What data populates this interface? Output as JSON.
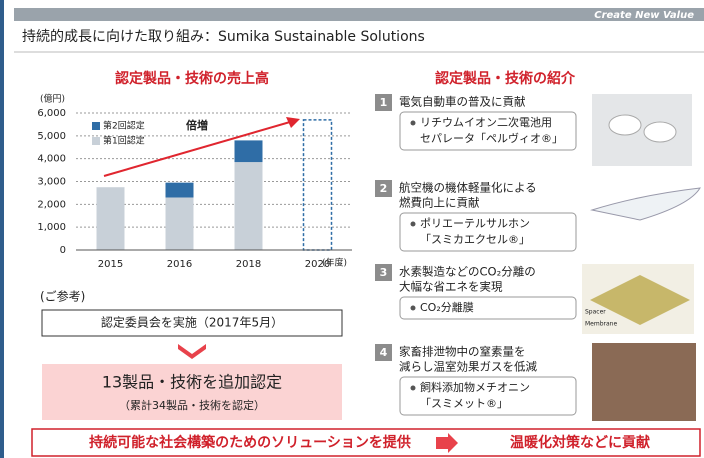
{
  "header": {
    "tag": "Create New Value",
    "title": "持続的成長に向けた取り組み：Sumika Sustainable Solutions"
  },
  "left_heading": "認定製品・技術の売上高",
  "chart_data": {
    "type": "stacked-bar",
    "y_unit": "(億円)",
    "x_unit": "(年度)",
    "annotation": "倍増",
    "categories": [
      "2015",
      "2016",
      "2018",
      "2020"
    ],
    "series": [
      {
        "name": "第1回認定",
        "color": "#c8d0d8",
        "values": [
          2750,
          2300,
          3850,
          null
        ]
      },
      {
        "name": "第2回認定",
        "color": "#2f6da6",
        "values": [
          null,
          650,
          950,
          null
        ]
      }
    ],
    "target_values": [
      null,
      null,
      null,
      5700
    ],
    "target_color": "#2f6da6",
    "ylim": [
      0,
      6000
    ],
    "yticks": [
      0,
      {
        "value": 1000,
        "label": "1,000"
      },
      {
        "value": 2000,
        "label": "2,000"
      },
      {
        "value": 3000,
        "label": "3,000"
      },
      {
        "value": 4000,
        "label": "4,000"
      },
      {
        "value": 5000,
        "label": "5,000"
      },
      {
        "value": 6000,
        "label": "6,000"
      }
    ],
    "grid": true
  },
  "reference": {
    "label": "(ご参考)",
    "event": "認定委員会を実施（2017年5月）",
    "result": "13製品・技術を追加認定",
    "result_note": "（累計34製品・技術を認定）"
  },
  "right_heading": "認定製品・技術の紹介",
  "items": [
    {
      "number": 1,
      "title": [
        "電気自動車の普及に貢献"
      ],
      "product": [
        "リチウムイオン二次電池用",
        "セパレータ「ペルヴィオ®」"
      ]
    },
    {
      "number": 2,
      "title": [
        "航空機の機体軽量化による",
        "燃費向上に貢献"
      ],
      "product": [
        "ポリエーテルサルホン",
        "「スミカエクセル®」"
      ]
    },
    {
      "number": 3,
      "title": [
        "水素製造などのCO₂分離の",
        "大幅な省エネを実現"
      ],
      "product": [
        "CO₂分離膜"
      ],
      "image_labels": [
        "Spacer",
        "Membrane"
      ]
    },
    {
      "number": 4,
      "title": [
        "家畜排泄物中の窒素量を",
        "減らし温室効果ガスを低減"
      ],
      "product": [
        "飼料添加物メチオニン",
        "「スミメット®」"
      ]
    }
  ],
  "footer": {
    "left": "持続可能な社会構築のためのソリューションを提供",
    "right": "温暖化対策などに貢献"
  }
}
